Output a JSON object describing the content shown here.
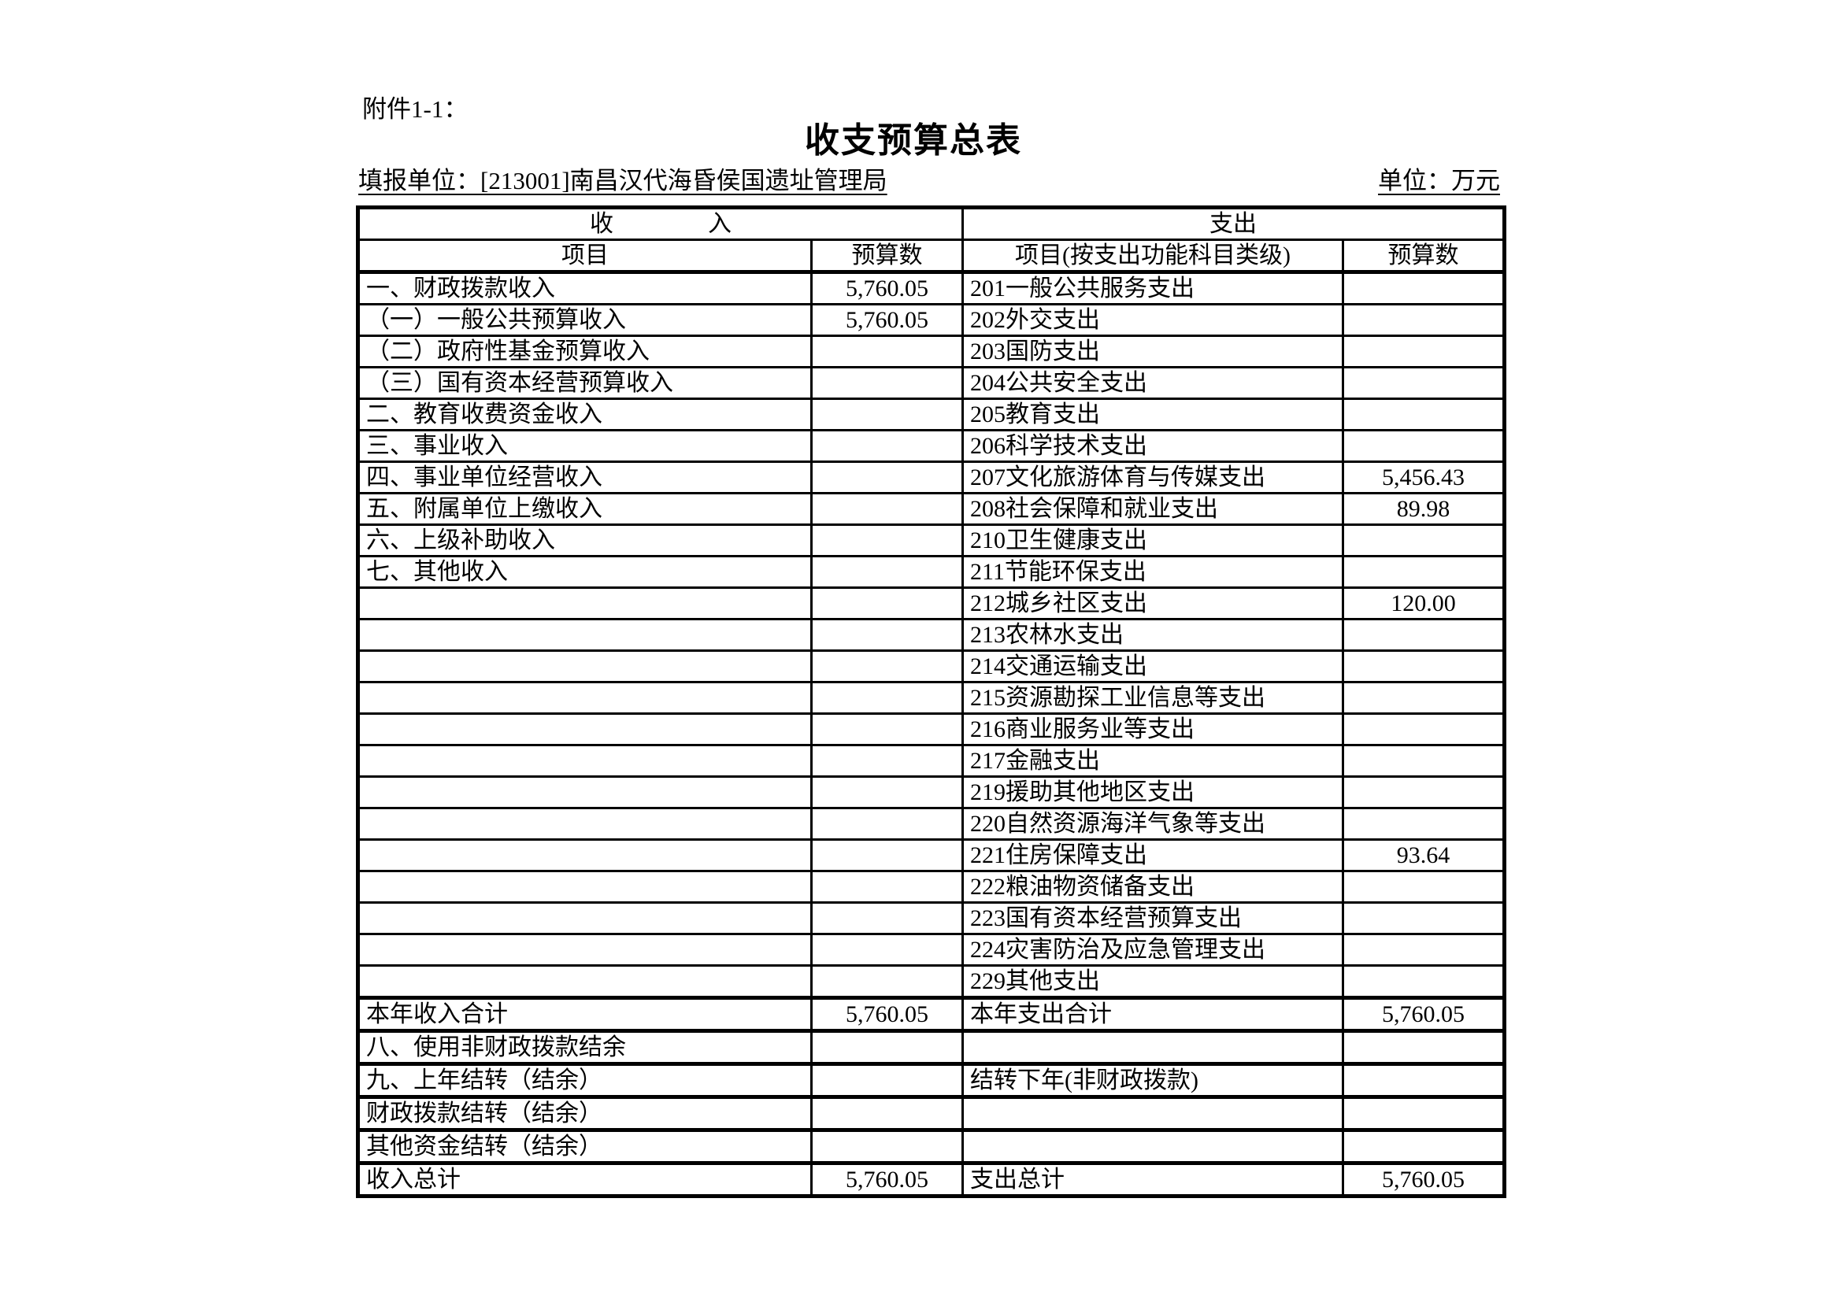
{
  "attachment_label": "附件1-1：",
  "title": "收支预算总表",
  "reporting_unit_label": "填报单位：[213001]南昌汉代海昏侯国遗址管理局",
  "unit_label": "单位：万元",
  "table": {
    "income_section_header": "收　　　　入",
    "expense_section_header": "支出",
    "columns": {
      "income_item_label": "项目",
      "income_budget_label": "预算数",
      "expense_item_label": "项目(按支出功能科目类级)",
      "expense_budget_label": "预算数"
    },
    "rows": [
      {
        "income_item": "一、财政拨款收入",
        "income_indent": 0,
        "income_budget": "5,760.05",
        "expense_item": "201一般公共服务支出",
        "expense_budget": "",
        "section_break": false
      },
      {
        "income_item": "（一）一般公共预算收入",
        "income_indent": 1,
        "income_budget": "5,760.05",
        "expense_item": "202外交支出",
        "expense_budget": "",
        "section_break": false
      },
      {
        "income_item": "（二）政府性基金预算收入",
        "income_indent": 1,
        "income_budget": "",
        "expense_item": "203国防支出",
        "expense_budget": "",
        "section_break": false
      },
      {
        "income_item": "（三）国有资本经营预算收入",
        "income_indent": 1,
        "income_budget": "",
        "expense_item": "204公共安全支出",
        "expense_budget": "",
        "section_break": false
      },
      {
        "income_item": "二、教育收费资金收入",
        "income_indent": 0,
        "income_budget": "",
        "expense_item": "205教育支出",
        "expense_budget": "",
        "section_break": false
      },
      {
        "income_item": "三、事业收入",
        "income_indent": 0,
        "income_budget": "",
        "expense_item": "206科学技术支出",
        "expense_budget": "",
        "section_break": false
      },
      {
        "income_item": "四、事业单位经营收入",
        "income_indent": 0,
        "income_budget": "",
        "expense_item": "207文化旅游体育与传媒支出",
        "expense_budget": "5,456.43",
        "section_break": false
      },
      {
        "income_item": "五、附属单位上缴收入",
        "income_indent": 0,
        "income_budget": "",
        "expense_item": "208社会保障和就业支出",
        "expense_budget": "89.98",
        "section_break": false
      },
      {
        "income_item": "六、上级补助收入",
        "income_indent": 0,
        "income_budget": "",
        "expense_item": "210卫生健康支出",
        "expense_budget": "",
        "section_break": false
      },
      {
        "income_item": "七、其他收入",
        "income_indent": 0,
        "income_budget": "",
        "expense_item": "211节能环保支出",
        "expense_budget": "",
        "section_break": false
      },
      {
        "income_item": "",
        "income_indent": 0,
        "income_budget": "",
        "expense_item": "212城乡社区支出",
        "expense_budget": "120.00",
        "section_break": false
      },
      {
        "income_item": "",
        "income_indent": 0,
        "income_budget": "",
        "expense_item": "213农林水支出",
        "expense_budget": "",
        "section_break": false
      },
      {
        "income_item": "",
        "income_indent": 0,
        "income_budget": "",
        "expense_item": "214交通运输支出",
        "expense_budget": "",
        "section_break": false
      },
      {
        "income_item": "",
        "income_indent": 0,
        "income_budget": "",
        "expense_item": "215资源勘探工业信息等支出",
        "expense_budget": "",
        "section_break": false
      },
      {
        "income_item": "",
        "income_indent": 0,
        "income_budget": "",
        "expense_item": "216商业服务业等支出",
        "expense_budget": "",
        "section_break": false
      },
      {
        "income_item": "",
        "income_indent": 0,
        "income_budget": "",
        "expense_item": "217金融支出",
        "expense_budget": "",
        "section_break": false
      },
      {
        "income_item": "",
        "income_indent": 0,
        "income_budget": "",
        "expense_item": "219援助其他地区支出",
        "expense_budget": "",
        "section_break": false
      },
      {
        "income_item": "",
        "income_indent": 0,
        "income_budget": "",
        "expense_item": "220自然资源海洋气象等支出",
        "expense_budget": "",
        "section_break": false
      },
      {
        "income_item": "",
        "income_indent": 0,
        "income_budget": "",
        "expense_item": "221住房保障支出",
        "expense_budget": "93.64",
        "section_break": false
      },
      {
        "income_item": "",
        "income_indent": 0,
        "income_budget": "",
        "expense_item": "222粮油物资储备支出",
        "expense_budget": "",
        "section_break": false
      },
      {
        "income_item": "",
        "income_indent": 0,
        "income_budget": "",
        "expense_item": "223国有资本经营预算支出",
        "expense_budget": "",
        "section_break": false
      },
      {
        "income_item": "",
        "income_indent": 0,
        "income_budget": "",
        "expense_item": "224灾害防治及应急管理支出",
        "expense_budget": "",
        "section_break": false
      },
      {
        "income_item": "",
        "income_indent": 0,
        "income_budget": "",
        "expense_item": "229其他支出",
        "expense_budget": "",
        "section_break": false
      },
      {
        "income_item": "本年收入合计",
        "income_indent": 3,
        "income_budget": "5,760.05",
        "expense_item": "本年支出合计",
        "expense_budget": "5,760.05",
        "section_break": true
      },
      {
        "income_item": "八、使用非财政拨款结余",
        "income_indent": 0,
        "income_budget": "",
        "expense_item": "",
        "expense_budget": "",
        "section_break": true
      },
      {
        "income_item": "九、上年结转（结余）",
        "income_indent": 0,
        "income_budget": "",
        "expense_item": "结转下年(非财政拨款)",
        "expense_budget": "",
        "section_break": true
      },
      {
        "income_item": "财政拨款结转（结余）",
        "income_indent": 2,
        "income_budget": "",
        "expense_item": "",
        "expense_budget": "",
        "section_break": true
      },
      {
        "income_item": "其他资金结转（结余）",
        "income_indent": 2,
        "income_budget": "",
        "expense_item": "",
        "expense_budget": "",
        "section_break": true
      },
      {
        "income_item": "收入总计",
        "income_indent": 3,
        "income_budget": "5,760.05",
        "expense_item": "支出总计",
        "expense_budget": "5,760.05",
        "section_break": true
      }
    ]
  }
}
